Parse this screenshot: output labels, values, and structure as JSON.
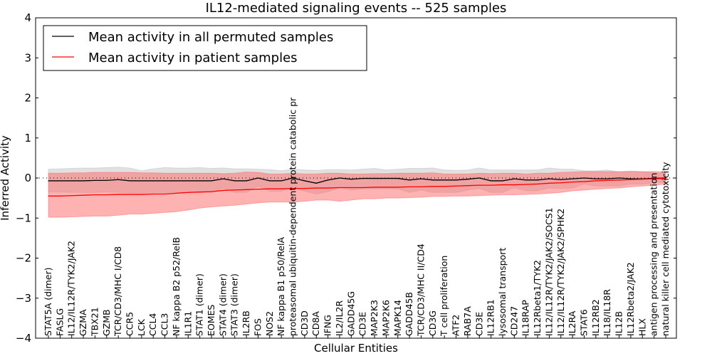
{
  "chart_data": {
    "type": "line",
    "title": "IL12-mediated signaling events -- 525 samples",
    "xlabel": "Cellular Entities",
    "ylabel": "Inferred Activity",
    "ylim": [
      -4,
      4
    ],
    "yticks": [
      -4,
      -3,
      -2,
      -1,
      0,
      1,
      2,
      3,
      4
    ],
    "ytick_labels": [
      "−4",
      "−3",
      "−2",
      "−1",
      "0",
      "1",
      "2",
      "3",
      "4"
    ],
    "grid": false,
    "reference_line": 0,
    "legend": {
      "placement": "top-left",
      "entries": [
        {
          "label": "Mean activity in all permuted samples",
          "color": "#000000"
        },
        {
          "label": "Mean activity in patient samples",
          "color": "#ff0000"
        }
      ]
    },
    "colors": {
      "permuted_line": "#000000",
      "patient_line": "#ff0000",
      "permuted_band": "#bdbdbd",
      "patient_band": "#ff6666"
    },
    "categories": [
      "STAT5A (dimer)",
      "FASLG",
      "IL12/IL12R/TYK2/JAK2",
      "GZMA",
      "TBX21",
      "GZMB",
      "TCR/CD3/MHC I/CD8",
      "CCR5",
      "LCK",
      "CCL4",
      "CCL3",
      "NF kappa B2 p52/RelB",
      "IL1R1",
      "STAT1 (dimer)",
      "EOMES",
      "STAT4 (dimer)",
      "STAT3 (dimer)",
      "IL2RB",
      "FOS",
      "NOS2",
      "NF kappa B1 p50/RelA",
      "proteasomal ubiquitin-dependent protein catabolic pr",
      "CD3D",
      "CD8A",
      "IFNG",
      "IL2/IL2R",
      "GADD45G",
      "CD3E",
      "MAP2K3",
      "MAP2K6",
      "MAPK14",
      "GADD45B",
      "TCR/CD3/MHC II/CD4",
      "CD3G",
      "T cell proliferation",
      "ATF2",
      "RAB7A",
      "CD3E",
      "IL12RB1",
      "lysosomal transport",
      "CD247",
      "IL18RAP",
      "IL12Rbeta1/TYK2",
      "IL12/IL12R/TYK2/JAK2/SOCS1",
      "IL12/IL12R/TYK2/JAK2/SPHK2",
      "IL2RA",
      "STAT6",
      "IL12RB2",
      "IL18/IL18R",
      "IL12B",
      "IL12Rbeta2/JAK2",
      "HLX",
      "antigen processing and presentation",
      "natural killer cell mediated cytotoxicity"
    ],
    "series": [
      {
        "name": "Mean activity in all permuted samples",
        "values": [
          -0.07,
          -0.07,
          -0.07,
          -0.07,
          -0.06,
          -0.06,
          -0.04,
          -0.07,
          -0.07,
          -0.07,
          -0.07,
          -0.07,
          -0.07,
          -0.07,
          -0.07,
          -0.02,
          -0.07,
          -0.07,
          0.0,
          -0.07,
          -0.07,
          0.0,
          -0.07,
          -0.13,
          -0.05,
          0.0,
          -0.03,
          -0.01,
          -0.01,
          -0.01,
          -0.01,
          -0.05,
          -0.02,
          -0.05,
          -0.05,
          -0.05,
          -0.03,
          0.0,
          -0.07,
          -0.07,
          -0.02,
          -0.05,
          -0.05,
          -0.02,
          -0.04,
          -0.02,
          0.0,
          -0.02,
          -0.02,
          0.0,
          -0.02,
          -0.02,
          -0.01,
          0.0
        ],
        "band_low": [
          -0.35,
          -0.35,
          -0.36,
          -0.36,
          -0.36,
          -0.35,
          -0.36,
          -0.37,
          -0.37,
          -0.36,
          -0.36,
          -0.36,
          -0.36,
          -0.36,
          -0.36,
          -0.25,
          -0.36,
          -0.36,
          -0.2,
          -0.33,
          -0.33,
          -0.24,
          -0.33,
          -0.4,
          -0.34,
          -0.24,
          -0.3,
          -0.27,
          -0.27,
          -0.27,
          -0.27,
          -0.36,
          -0.3,
          -0.36,
          -0.36,
          -0.36,
          -0.3,
          -0.26,
          -0.36,
          -0.36,
          -0.24,
          -0.32,
          -0.32,
          -0.25,
          -0.26,
          -0.25,
          -0.15,
          -0.2,
          -0.2,
          -0.2,
          -0.15,
          -0.15,
          -0.12,
          -0.1
        ],
        "band_high": [
          0.22,
          0.23,
          0.24,
          0.25,
          0.25,
          0.26,
          0.27,
          0.25,
          0.18,
          0.23,
          0.26,
          0.25,
          0.25,
          0.26,
          0.24,
          0.25,
          0.23,
          0.23,
          0.22,
          0.21,
          0.18,
          0.22,
          0.2,
          0.19,
          0.21,
          0.21,
          0.2,
          0.22,
          0.24,
          0.2,
          0.22,
          0.24,
          0.24,
          0.25,
          0.2,
          0.19,
          0.2,
          0.25,
          0.2,
          0.2,
          0.2,
          0.2,
          0.2,
          0.25,
          0.22,
          0.22,
          0.18,
          0.18,
          0.2,
          0.15,
          0.15,
          0.15,
          0.13,
          0.12
        ]
      },
      {
        "name": "Mean activity in patient samples",
        "values": [
          -0.45,
          -0.45,
          -0.44,
          -0.43,
          -0.42,
          -0.42,
          -0.41,
          -0.41,
          -0.41,
          -0.4,
          -0.4,
          -0.38,
          -0.36,
          -0.35,
          -0.34,
          -0.31,
          -0.3,
          -0.29,
          -0.28,
          -0.27,
          -0.27,
          -0.26,
          -0.26,
          -0.25,
          -0.25,
          -0.24,
          -0.24,
          -0.24,
          -0.23,
          -0.23,
          -0.23,
          -0.22,
          -0.22,
          -0.21,
          -0.21,
          -0.2,
          -0.19,
          -0.18,
          -0.18,
          -0.17,
          -0.17,
          -0.16,
          -0.15,
          -0.13,
          -0.12,
          -0.1,
          -0.09,
          -0.07,
          -0.06,
          -0.05,
          -0.04,
          -0.03,
          -0.02,
          -0.01
        ],
        "band_low": [
          -0.98,
          -0.98,
          -0.97,
          -0.96,
          -0.95,
          -0.95,
          -0.93,
          -0.9,
          -0.9,
          -0.88,
          -0.86,
          -0.84,
          -0.8,
          -0.75,
          -0.72,
          -0.7,
          -0.68,
          -0.65,
          -0.62,
          -0.6,
          -0.6,
          -0.6,
          -0.58,
          -0.55,
          -0.55,
          -0.58,
          -0.55,
          -0.52,
          -0.52,
          -0.5,
          -0.5,
          -0.49,
          -0.48,
          -0.46,
          -0.46,
          -0.45,
          -0.45,
          -0.44,
          -0.43,
          -0.42,
          -0.42,
          -0.41,
          -0.4,
          -0.38,
          -0.36,
          -0.32,
          -0.3,
          -0.28,
          -0.26,
          -0.25,
          -0.22,
          -0.2,
          -0.18,
          -0.15
        ],
        "band_high": [
          0.12,
          0.12,
          0.13,
          0.13,
          0.14,
          0.14,
          0.14,
          0.14,
          0.13,
          0.13,
          0.12,
          0.12,
          0.12,
          0.12,
          0.12,
          0.11,
          0.12,
          0.15,
          0.14,
          0.1,
          0.1,
          0.12,
          0.1,
          0.1,
          0.12,
          0.12,
          0.1,
          0.1,
          0.11,
          0.11,
          0.12,
          0.12,
          0.12,
          0.13,
          0.1,
          0.1,
          0.1,
          0.12,
          0.11,
          0.12,
          0.12,
          0.1,
          0.12,
          0.12,
          0.14,
          0.15,
          0.16,
          0.16,
          0.16,
          0.16,
          0.17,
          0.16,
          0.16,
          0.15
        ]
      }
    ]
  }
}
